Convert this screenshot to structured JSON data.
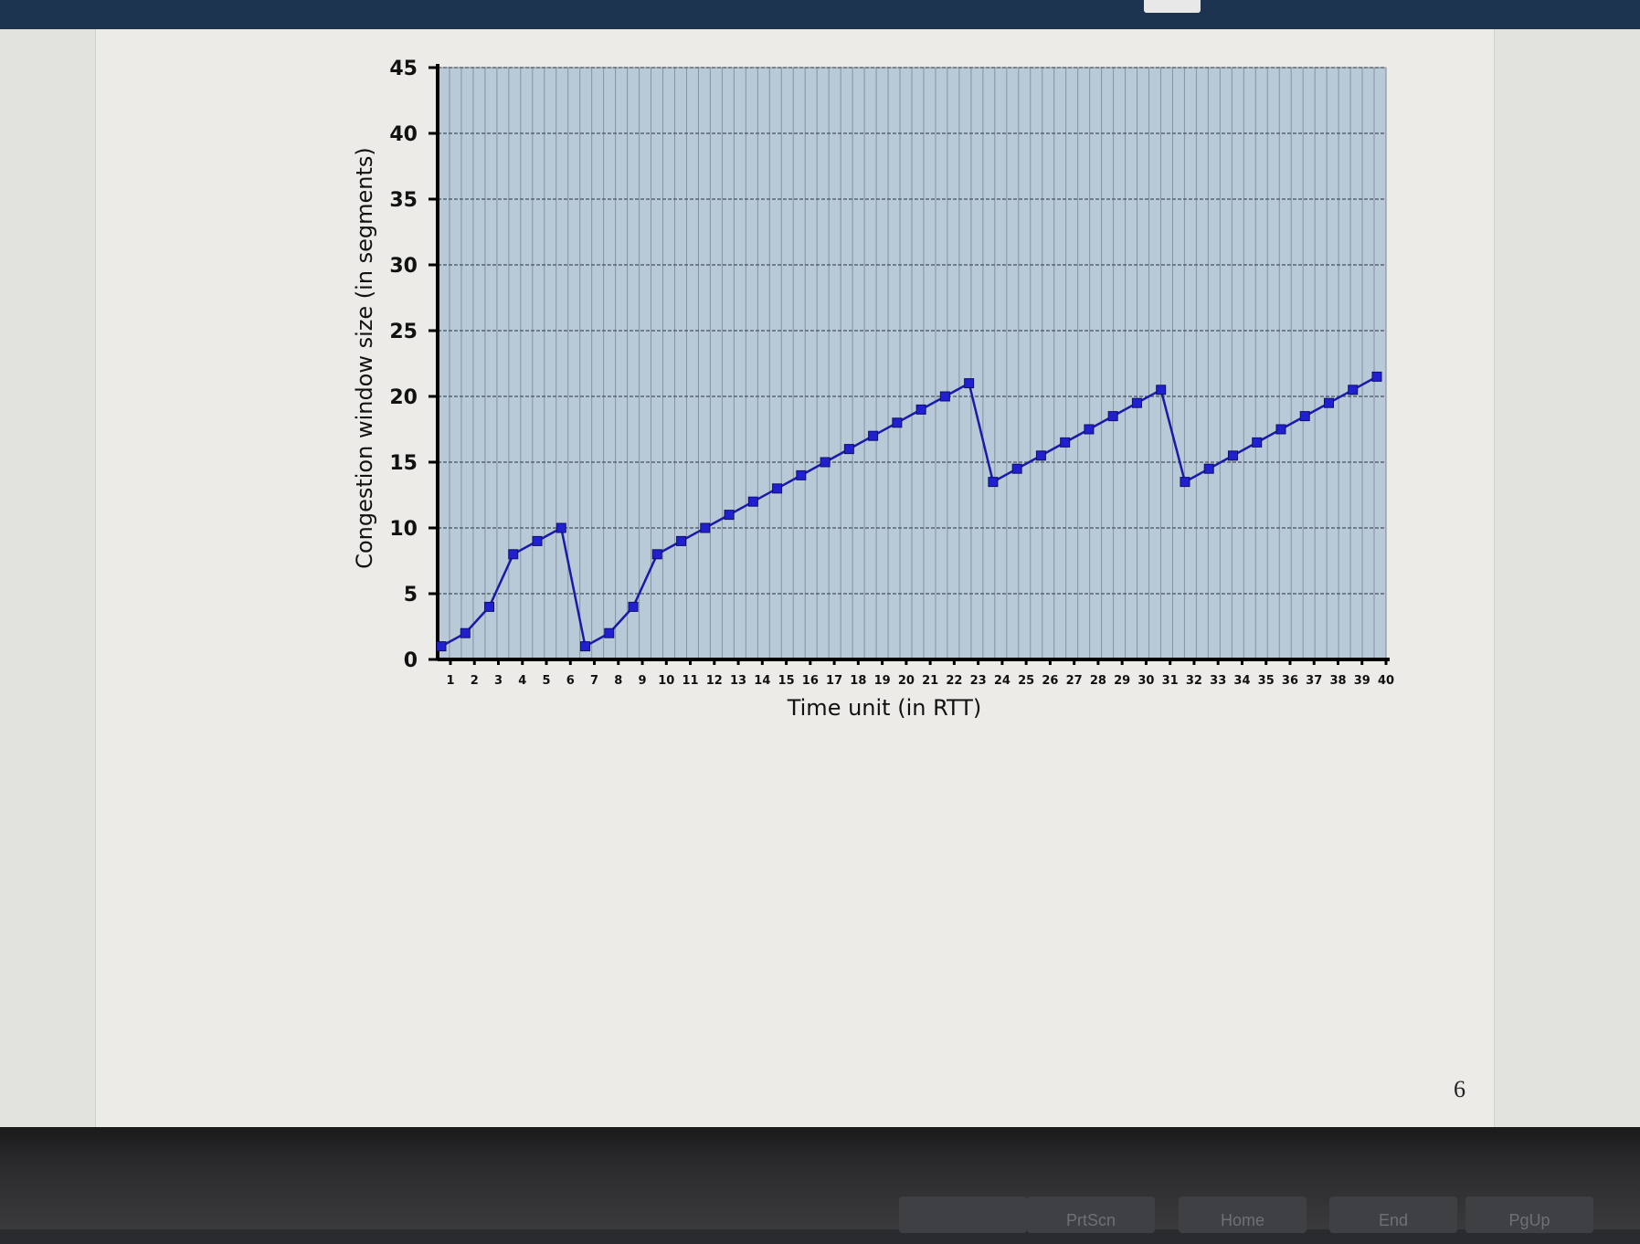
{
  "page": {
    "number": "6"
  },
  "keyboard": {
    "keys": [
      "PrtScn",
      "Home",
      "End",
      "PgUp"
    ]
  },
  "chart_data": {
    "type": "line",
    "xlabel": "Time unit (in RTT)",
    "ylabel": "Congestion window size (in segments)",
    "xlim": [
      1,
      40
    ],
    "ylim": [
      0,
      45
    ],
    "yticks": [
      0,
      5,
      10,
      15,
      20,
      25,
      30,
      35,
      40,
      45
    ],
    "xticks": [
      1,
      2,
      3,
      4,
      5,
      6,
      7,
      8,
      9,
      10,
      11,
      12,
      13,
      14,
      15,
      16,
      17,
      18,
      19,
      20,
      21,
      22,
      23,
      24,
      25,
      26,
      27,
      28,
      29,
      30,
      31,
      32,
      33,
      34,
      35,
      36,
      37,
      38,
      39,
      40
    ],
    "grid": true,
    "colors": {
      "plot_bg": "#b8c9d8",
      "line": "#1a1aa8",
      "marker": "#2020d0",
      "grid": "#7a8694"
    },
    "series": [
      {
        "x": [
          1,
          2,
          3,
          4,
          5,
          6,
          7,
          8,
          9,
          10,
          11,
          12,
          13,
          14,
          15,
          16,
          17,
          18,
          19,
          20,
          21,
          22,
          23,
          24,
          25,
          26,
          27,
          28,
          29,
          30,
          31,
          32,
          33,
          34,
          35,
          36,
          37,
          38,
          39,
          40
        ],
        "values": [
          1,
          2,
          4,
          8,
          9,
          10,
          1,
          2,
          4,
          8,
          9,
          10,
          11,
          12,
          13,
          14,
          15,
          16,
          17,
          18,
          19,
          20,
          21,
          13.5,
          14.5,
          15.5,
          16.5,
          17.5,
          18.5,
          19.5,
          20.5,
          13.5,
          14.5,
          15.5,
          16.5,
          17.5,
          18.5,
          19.5,
          20.5,
          21.5
        ]
      }
    ]
  }
}
